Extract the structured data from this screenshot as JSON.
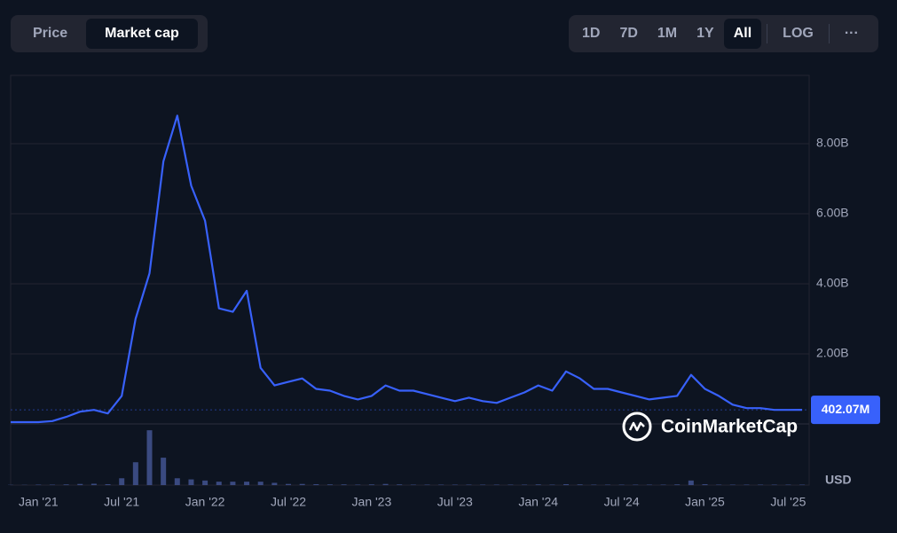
{
  "ui": {
    "tabs": [
      "Price",
      "Market cap"
    ],
    "active_tab": 1,
    "ranges": [
      "1D",
      "7D",
      "1M",
      "1Y",
      "All",
      "LOG"
    ],
    "active_range": 4,
    "more": "···",
    "watermark": "CoinMarketCap",
    "currency": "USD"
  },
  "chart_data": {
    "type": "line",
    "x": [
      "2020-11",
      "2020-12",
      "2021-01",
      "2021-02",
      "2021-03",
      "2021-04",
      "2021-05",
      "2021-06",
      "2021-07",
      "2021-08",
      "2021-09",
      "2021-10",
      "2021-11",
      "2021-12",
      "2022-01",
      "2022-02",
      "2022-03",
      "2022-04",
      "2022-05",
      "2022-06",
      "2022-07",
      "2022-08",
      "2022-09",
      "2022-10",
      "2022-11",
      "2022-12",
      "2023-01",
      "2023-02",
      "2023-03",
      "2023-04",
      "2023-05",
      "2023-06",
      "2023-07",
      "2023-08",
      "2023-09",
      "2023-10",
      "2023-11",
      "2023-12",
      "2024-01",
      "2024-02",
      "2024-03",
      "2024-04",
      "2024-05",
      "2024-06",
      "2024-07",
      "2024-08",
      "2024-09",
      "2024-10",
      "2024-11",
      "2024-12",
      "2025-01",
      "2025-02",
      "2025-03",
      "2025-04",
      "2025-05",
      "2025-06",
      "2025-07",
      "2025-08"
    ],
    "series": [
      {
        "name": "Market cap",
        "color": "#3861fb",
        "values": [
          0.05,
          0.05,
          0.05,
          0.08,
          0.2,
          0.35,
          0.4,
          0.3,
          0.8,
          3.0,
          4.3,
          7.5,
          8.8,
          6.8,
          5.8,
          3.3,
          3.2,
          3.8,
          1.6,
          1.1,
          1.2,
          1.3,
          1.0,
          0.95,
          0.8,
          0.7,
          0.8,
          1.1,
          0.95,
          0.95,
          0.85,
          0.75,
          0.65,
          0.75,
          0.65,
          0.6,
          0.75,
          0.9,
          1.1,
          0.95,
          1.5,
          1.3,
          1.0,
          1.0,
          0.9,
          0.8,
          0.7,
          0.75,
          0.8,
          1.4,
          1.0,
          0.8,
          0.55,
          0.45,
          0.45,
          0.4,
          0.4,
          0.40207
        ]
      }
    ],
    "volume": {
      "color": "#3a4a80",
      "ylim": [
        0,
        2.6
      ],
      "values": [
        0.01,
        0.01,
        0.02,
        0.02,
        0.03,
        0.05,
        0.06,
        0.04,
        0.3,
        1.0,
        2.4,
        1.2,
        0.3,
        0.25,
        0.2,
        0.15,
        0.15,
        0.15,
        0.15,
        0.1,
        0.05,
        0.05,
        0.04,
        0.03,
        0.03,
        0.02,
        0.03,
        0.05,
        0.03,
        0.02,
        0.02,
        0.02,
        0.02,
        0.02,
        0.02,
        0.02,
        0.02,
        0.02,
        0.03,
        0.02,
        0.04,
        0.03,
        0.02,
        0.02,
        0.02,
        0.02,
        0.02,
        0.02,
        0.03,
        0.2,
        0.04,
        0.02,
        0.02,
        0.02,
        0.02,
        0.02,
        0.02,
        0.02
      ]
    },
    "current": {
      "value": 0.40207,
      "label": "402.07M"
    },
    "ylim": [
      0,
      9.95
    ],
    "yticks": [
      {
        "value": 2,
        "label": "2.00B"
      },
      {
        "value": 4,
        "label": "4.00B"
      },
      {
        "value": 6,
        "label": "6.00B"
      },
      {
        "value": 8,
        "label": "8.00B"
      }
    ],
    "xticks": [
      {
        "value": "2021-01",
        "label": "Jan '21"
      },
      {
        "value": "2021-07",
        "label": "Jul '21"
      },
      {
        "value": "2022-01",
        "label": "Jan '22"
      },
      {
        "value": "2022-07",
        "label": "Jul '22"
      },
      {
        "value": "2023-01",
        "label": "Jan '23"
      },
      {
        "value": "2023-07",
        "label": "Jul '23"
      },
      {
        "value": "2024-01",
        "label": "Jan '24"
      },
      {
        "value": "2024-07",
        "label": "Jul '24"
      },
      {
        "value": "2025-01",
        "label": "Jan '25"
      },
      {
        "value": "2025-07",
        "label": "Jul '25"
      }
    ],
    "grid": true
  }
}
